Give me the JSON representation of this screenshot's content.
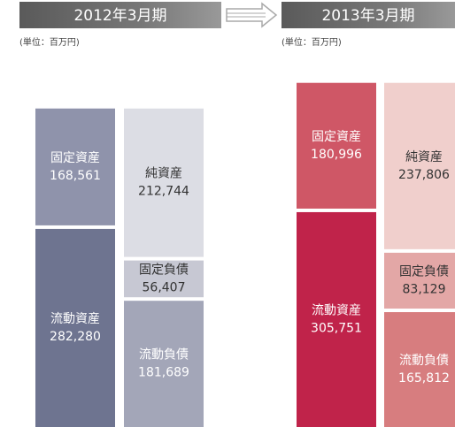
{
  "chart_data": [
    {
      "type": "bar",
      "title": "2012年3月期",
      "subtitle": "(単位：百万円)",
      "categories": [
        null,
        null
      ],
      "series": [
        {
          "name": "流動資産",
          "color": "#6e7490",
          "label_color": "#ffffff",
          "values": [
            282280,
            null
          ],
          "value_labels": [
            "282,280",
            null
          ]
        },
        {
          "name": "固定資産",
          "color": "#8f93ab",
          "label_color": "#ffffff",
          "values": [
            168561,
            null
          ],
          "value_labels": [
            "168,561",
            null
          ]
        },
        {
          "name": "流動負債",
          "color": "#a3a6b8",
          "label_color": "#ffffff",
          "values": [
            null,
            181689
          ],
          "value_labels": [
            null,
            "181,689"
          ]
        },
        {
          "name": "固定負債",
          "color": "#c7c8d3",
          "label_color": "#333333",
          "values": [
            null,
            56407
          ],
          "value_labels": [
            null,
            "56,407"
          ]
        },
        {
          "name": "純資産",
          "color": "#dcdde4",
          "label_color": "#333333",
          "values": [
            null,
            212744
          ],
          "value_labels": [
            null,
            "212,744"
          ]
        }
      ]
    },
    {
      "type": "bar",
      "title": "2013年3月期",
      "subtitle": "(単位：百万円)",
      "categories": [
        null,
        null
      ],
      "series": [
        {
          "name": "流動資産",
          "color": "#c0234a",
          "label_color": "#ffffff",
          "values": [
            305751,
            null
          ],
          "value_labels": [
            "305,751",
            null
          ]
        },
        {
          "name": "固定資産",
          "color": "#cf5766",
          "label_color": "#ffffff",
          "values": [
            180996,
            null
          ],
          "value_labels": [
            "180,996",
            null
          ]
        },
        {
          "name": "流動負債",
          "color": "#d77d7f",
          "label_color": "#ffffff",
          "values": [
            null,
            165812
          ],
          "value_labels": [
            null,
            "165,812"
          ]
        },
        {
          "name": "固定負債",
          "color": "#e3a7a6",
          "label_color": "#333333",
          "values": [
            null,
            83129
          ],
          "value_labels": [
            null,
            "83,129"
          ]
        },
        {
          "name": "純資産",
          "color": "#f0cfcc",
          "label_color": "#333333",
          "values": [
            null,
            237806
          ],
          "value_labels": [
            null,
            "237,806"
          ]
        }
      ]
    }
  ]
}
